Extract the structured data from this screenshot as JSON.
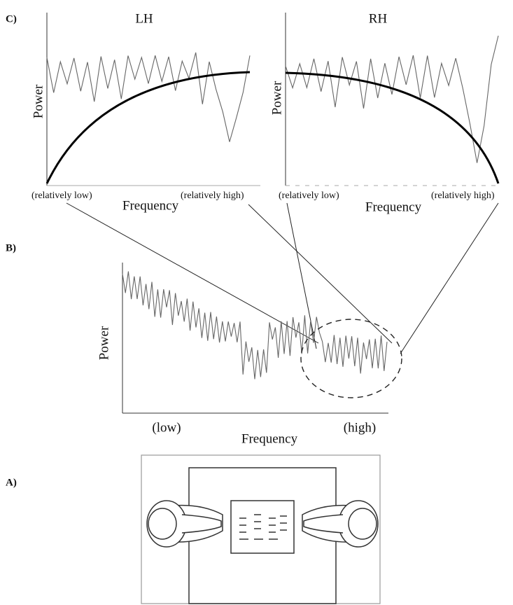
{
  "panels": {
    "c": {
      "label": "C)",
      "left": {
        "title": "LH",
        "y_label": "Power",
        "x_label": "Frequency",
        "low": "(relatively low)",
        "high": "(relatively high)"
      },
      "right": {
        "title": "RH",
        "y_label": "Power",
        "x_label": "Frequency",
        "low": "(relatively low)",
        "high": "(relatively high)"
      }
    },
    "b": {
      "label": "B)",
      "y_label": "Power",
      "x_label": "Frequency",
      "low": "(low)",
      "high": "(high)"
    },
    "a": {
      "label": "A)"
    }
  }
}
